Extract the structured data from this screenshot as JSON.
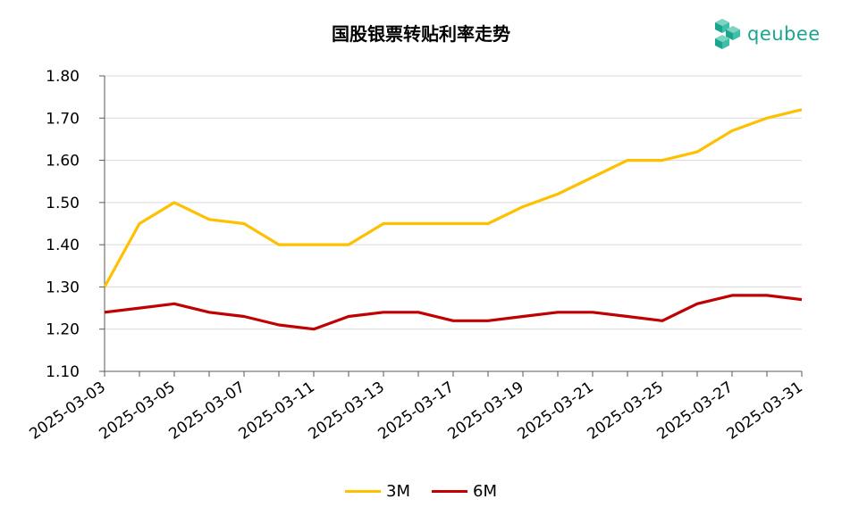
{
  "chart_data": {
    "type": "line",
    "title": "国股银票转贴利率走势",
    "xlabel": "",
    "ylabel": "",
    "ylim": [
      1.1,
      1.8
    ],
    "yticks": [
      "1.10",
      "1.20",
      "1.30",
      "1.40",
      "1.50",
      "1.60",
      "1.70",
      "1.80"
    ],
    "x": [
      "2025-03-03",
      "2025-03-04",
      "2025-03-05",
      "2025-03-06",
      "2025-03-07",
      "2025-03-10",
      "2025-03-11",
      "2025-03-12",
      "2025-03-13",
      "2025-03-14",
      "2025-03-17",
      "2025-03-18",
      "2025-03-19",
      "2025-03-20",
      "2025-03-21",
      "2025-03-24",
      "2025-03-25",
      "2025-03-26",
      "2025-03-27",
      "2025-03-28",
      "2025-03-31"
    ],
    "xtick_labels": [
      "2025-03-03",
      "2025-03-05",
      "2025-03-07",
      "2025-03-11",
      "2025-03-13",
      "2025-03-17",
      "2025-03-19",
      "2025-03-21",
      "2025-03-25",
      "2025-03-27",
      "2025-03-31"
    ],
    "series": [
      {
        "name": "3M",
        "color": "#FFC000",
        "values": [
          1.3,
          1.45,
          1.5,
          1.46,
          1.45,
          1.4,
          1.4,
          1.4,
          1.45,
          1.45,
          1.45,
          1.45,
          1.49,
          1.52,
          1.56,
          1.6,
          1.6,
          1.62,
          1.67,
          1.7,
          1.72
        ]
      },
      {
        "name": "6M",
        "color": "#C00000",
        "values": [
          1.24,
          1.25,
          1.26,
          1.24,
          1.23,
          1.21,
          1.2,
          1.23,
          1.24,
          1.24,
          1.22,
          1.22,
          1.23,
          1.24,
          1.24,
          1.23,
          1.22,
          1.26,
          1.28,
          1.28,
          1.27
        ]
      }
    ],
    "grid": true,
    "legend_position": "bottom"
  },
  "logo": {
    "text": "qeubee",
    "color": "#1aa58f"
  }
}
